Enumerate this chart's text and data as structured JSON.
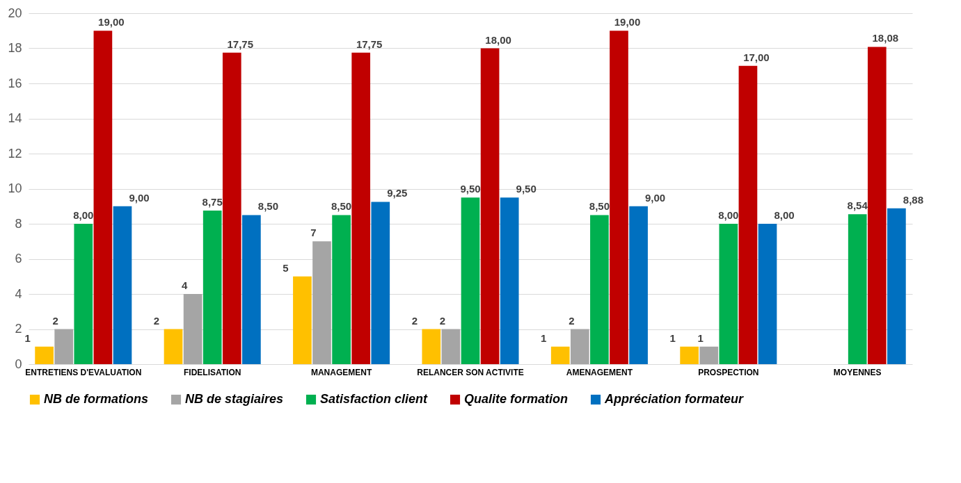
{
  "chart_data": {
    "type": "bar",
    "categories": [
      "ENTRETIENS D'EVALUATION",
      "FIDELISATION",
      "MANAGEMENT",
      "RELANCER SON ACTIVITE",
      "AMENAGEMENT",
      "PROSPECTION",
      "MOYENNES"
    ],
    "series": [
      {
        "name": "NB de formations",
        "color": "#ffc000",
        "values": [
          1,
          2,
          5,
          2,
          1,
          1,
          null
        ],
        "value_labels": [
          "1",
          "2",
          "5",
          "2",
          "1",
          "1",
          null
        ]
      },
      {
        "name": "NB de stagiaires",
        "color": "#a5a5a5",
        "values": [
          2,
          4,
          7,
          2,
          2,
          1,
          null
        ],
        "value_labels": [
          "2",
          "4",
          "7",
          "2",
          "2",
          "1",
          null
        ]
      },
      {
        "name": "Satisfaction client",
        "color": "#00b050",
        "values": [
          8.0,
          8.75,
          8.5,
          9.5,
          8.5,
          8.0,
          8.54
        ],
        "value_labels": [
          "8,00",
          "8,75",
          "8,50",
          "9,50",
          "8,50",
          "8,00",
          "8,54"
        ]
      },
      {
        "name": "Qualite formation",
        "color": "#c00000",
        "values": [
          19.0,
          17.75,
          17.75,
          18.0,
          19.0,
          17.0,
          18.08
        ],
        "value_labels": [
          "19,00",
          "17,75",
          "17,75",
          "18,00",
          "19,00",
          "17,00",
          "18,08"
        ]
      },
      {
        "name": "Appréciation formateur",
        "color": "#0070c0",
        "values": [
          9.0,
          8.5,
          9.25,
          9.5,
          9.0,
          8.0,
          8.88
        ],
        "value_labels": [
          "9,00",
          "8,50",
          "9,25",
          "9,50",
          "9,00",
          "8,00",
          "8,88"
        ]
      }
    ],
    "ylim": [
      0,
      20
    ],
    "yticks": [
      0,
      2,
      4,
      6,
      8,
      10,
      12,
      14,
      16,
      18,
      20
    ],
    "grid": "y",
    "legend": "bottom"
  }
}
